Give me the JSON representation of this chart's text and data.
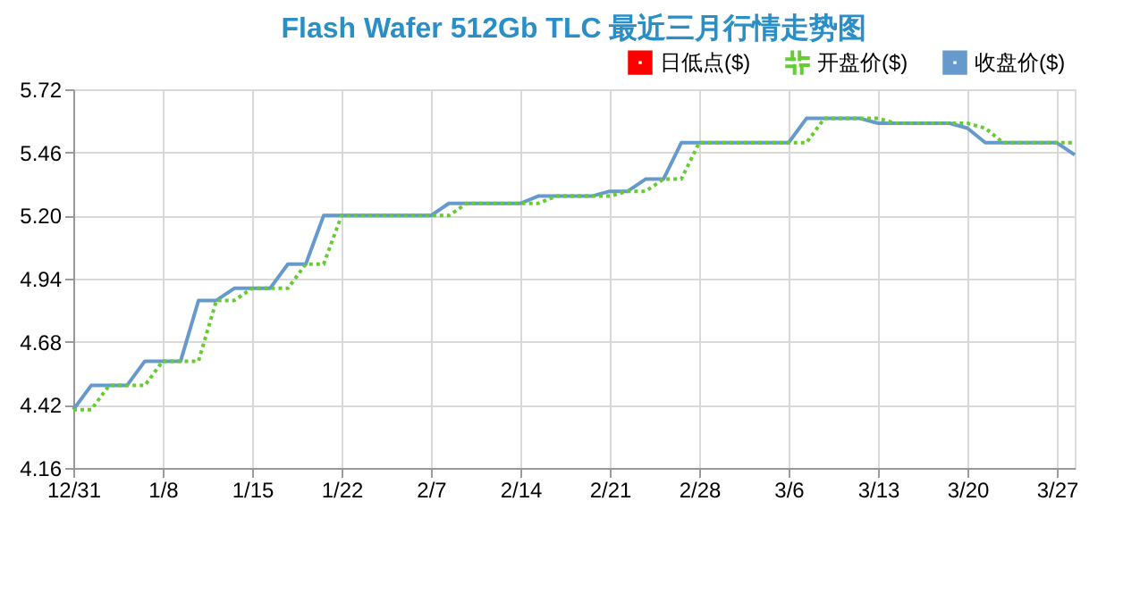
{
  "chart_data": {
    "type": "line",
    "title": "Flash Wafer 512Gb TLC 最近三月行情走势图",
    "categories": [
      "12/31",
      null,
      null,
      null,
      null,
      "1/8",
      null,
      null,
      null,
      null,
      "1/15",
      null,
      null,
      null,
      null,
      "1/22",
      null,
      null,
      null,
      null,
      "2/7",
      null,
      null,
      null,
      null,
      "2/14",
      null,
      null,
      null,
      null,
      "2/21",
      null,
      null,
      null,
      null,
      "2/28",
      null,
      null,
      null,
      null,
      "3/6",
      null,
      null,
      null,
      null,
      "3/13",
      null,
      null,
      null,
      null,
      "3/20",
      null,
      null,
      null,
      null,
      "3/27",
      null
    ],
    "series": [
      {
        "name": "日低点($)",
        "color": "#ff0000",
        "line_style": "solid",
        "values": [
          null,
          null,
          null,
          null,
          null,
          null,
          null,
          null,
          null,
          null,
          null,
          null,
          null,
          null,
          null,
          null,
          null,
          null,
          null,
          null,
          null,
          null,
          null,
          null,
          null,
          null,
          null,
          null,
          null,
          null,
          null,
          null,
          null,
          null,
          null,
          null,
          null,
          null,
          null,
          null,
          null,
          null,
          null,
          null,
          null,
          null,
          null,
          null,
          null,
          null,
          null,
          null,
          null,
          null,
          null,
          null,
          null
        ]
      },
      {
        "name": "开盘价($)",
        "color": "#66cc33",
        "line_style": "dotted",
        "values": [
          4.4,
          4.4,
          4.5,
          4.5,
          4.5,
          4.6,
          4.6,
          4.6,
          4.85,
          4.85,
          4.9,
          4.9,
          4.9,
          5.0,
          5.0,
          5.2,
          5.2,
          5.2,
          5.2,
          5.2,
          5.2,
          5.2,
          5.25,
          5.25,
          5.25,
          5.25,
          5.25,
          5.28,
          5.28,
          5.28,
          5.28,
          5.3,
          5.3,
          5.35,
          5.35,
          5.5,
          5.5,
          5.5,
          5.5,
          5.5,
          5.5,
          5.5,
          5.6,
          5.6,
          5.6,
          5.6,
          5.58,
          5.58,
          5.58,
          5.58,
          5.58,
          5.56,
          5.5,
          5.5,
          5.5,
          5.5,
          5.5
        ]
      },
      {
        "name": "收盘价($)",
        "color": "#6699cc",
        "line_style": "solid",
        "values": [
          4.4,
          4.5,
          4.5,
          4.5,
          4.6,
          4.6,
          4.6,
          4.85,
          4.85,
          4.9,
          4.9,
          4.9,
          5.0,
          5.0,
          5.2,
          5.2,
          5.2,
          5.2,
          5.2,
          5.2,
          5.2,
          5.25,
          5.25,
          5.25,
          5.25,
          5.25,
          5.28,
          5.28,
          5.28,
          5.28,
          5.3,
          5.3,
          5.35,
          5.35,
          5.5,
          5.5,
          5.5,
          5.5,
          5.5,
          5.5,
          5.5,
          5.6,
          5.6,
          5.6,
          5.6,
          5.58,
          5.58,
          5.58,
          5.58,
          5.58,
          5.56,
          5.5,
          5.5,
          5.5,
          5.5,
          5.5,
          5.45
        ]
      }
    ],
    "ylim": [
      4.16,
      5.72
    ],
    "yticks": [
      4.16,
      4.42,
      4.68,
      4.94,
      {
        "value": 5.2,
        "label": "5.20"
      },
      5.46,
      5.72
    ],
    "grid": true,
    "legend": "top right"
  }
}
